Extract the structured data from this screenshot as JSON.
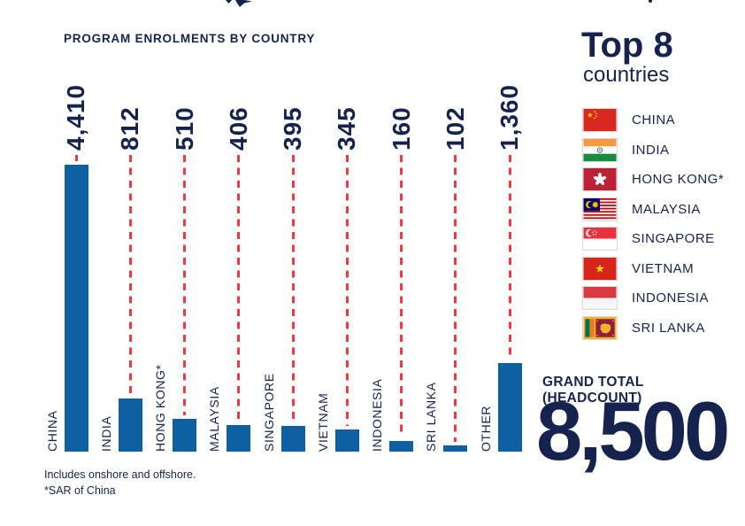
{
  "page": {
    "title": "PROGRAM ENROLMENTS BY COUNTRY",
    "footnotes": [
      "Includes onshore and offshore.",
      "*SAR of China"
    ]
  },
  "chart_data": {
    "type": "bar",
    "title": "PROGRAM ENROLMENTS BY COUNTRY",
    "categories": [
      "CHINA",
      "INDIA",
      "HONG KONG*",
      "MALAYSIA",
      "SINGAPORE",
      "VIETNAM",
      "INDONESIA",
      "SRI LANKA",
      "OTHER"
    ],
    "values": [
      4410,
      812,
      510,
      406,
      395,
      345,
      160,
      102,
      1360
    ],
    "value_labels": [
      "4,410",
      "812",
      "510",
      "406",
      "395",
      "345",
      "160",
      "102",
      "1,360"
    ],
    "orientation": "vertical",
    "ylim": [
      0,
      4410
    ],
    "grid": false,
    "bar_color": "#0f5fa3",
    "guide_line_color": "#ee3a41",
    "guide_line_style": "dashed",
    "value_label_rotation": -90,
    "category_label_rotation": -90
  },
  "legend": {
    "title": "Top 8",
    "subtitle": "countries",
    "items": [
      {
        "label": "CHINA",
        "icon": "flag-china-icon"
      },
      {
        "label": "INDIA",
        "icon": "flag-india-icon"
      },
      {
        "label": "HONG KONG*",
        "icon": "flag-hong-kong-icon"
      },
      {
        "label": "MALAYSIA",
        "icon": "flag-malaysia-icon"
      },
      {
        "label": "SINGAPORE",
        "icon": "flag-singapore-icon"
      },
      {
        "label": "VIETNAM",
        "icon": "flag-vietnam-icon"
      },
      {
        "label": "INDONESIA",
        "icon": "flag-indonesia-icon"
      },
      {
        "label": "SRI LANKA",
        "icon": "flag-sri-lanka-icon"
      }
    ]
  },
  "grand_total": {
    "label": "GRAND TOTAL (HEADCOUNT)",
    "value": "8,500"
  },
  "colors": {
    "navy": "#16234f",
    "bar_blue": "#0f5fa3",
    "dash_red": "#ee3a41"
  }
}
